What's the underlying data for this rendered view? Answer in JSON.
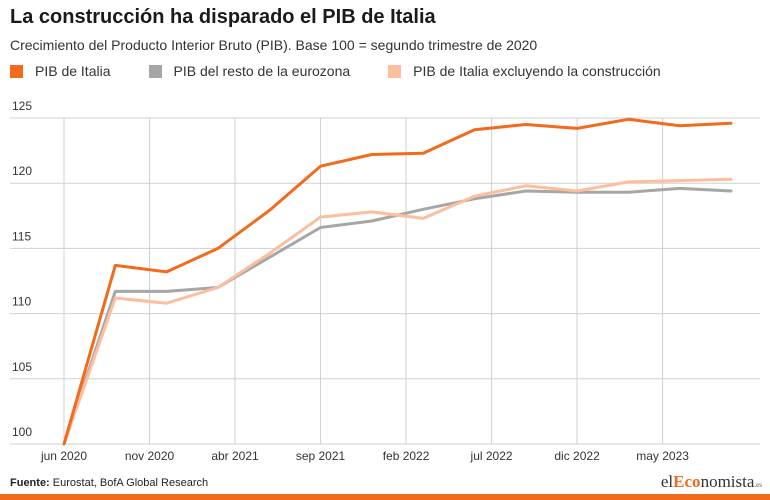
{
  "title": "La construcción ha disparado el PIB de Italia",
  "subtitle": "Crecimiento del Producto Interior Bruto (PIB). Base 100 = segundo trimestre de 2020",
  "source_label": "Fuente:",
  "source_text": " Eurostat, BofA Global Research",
  "logo": {
    "prefix": "el",
    "accent": "Eco",
    "rest": "nomista",
    "suffix": ".es"
  },
  "colors": {
    "italy": "#f26a1b",
    "eurozone": "#a6a6a6",
    "excl": "#fbbf9f",
    "brand": "#f26a1b"
  },
  "chart_data": {
    "type": "line",
    "x": [
      "2020-06",
      "2020-09",
      "2020-12",
      "2021-03",
      "2021-06",
      "2021-09",
      "2021-12",
      "2022-03",
      "2022-06",
      "2022-09",
      "2022-12",
      "2023-03",
      "2023-06",
      "2023-09"
    ],
    "xticks": [
      {
        "label": "jun 2020",
        "x": "2020-06"
      },
      {
        "label": "nov 2020",
        "x": "2020-11"
      },
      {
        "label": "abr 2021",
        "x": "2021-04"
      },
      {
        "label": "sep 2021",
        "x": "2021-09"
      },
      {
        "label": "feb 2022",
        "x": "2022-02"
      },
      {
        "label": "jul 2022",
        "x": "2022-07"
      },
      {
        "label": "dic 2022",
        "x": "2022-12"
      },
      {
        "label": "may 2023",
        "x": "2023-05"
      }
    ],
    "yticks": [
      100,
      105,
      110,
      115,
      120,
      125
    ],
    "ylim": [
      100,
      125
    ],
    "grid": true,
    "legend": "top-left",
    "series": [
      {
        "name": "PIB de Italia",
        "color": "#f26a1b",
        "values": [
          100,
          113.7,
          113.2,
          115.0,
          117.9,
          121.3,
          122.2,
          122.3,
          124.1,
          124.5,
          124.2,
          124.9,
          124.4,
          124.6
        ]
      },
      {
        "name": "PIB del resto de la eurozona",
        "color": "#a6a6a6",
        "values": [
          100,
          111.7,
          111.7,
          112.0,
          114.3,
          116.6,
          117.1,
          118.0,
          118.8,
          119.4,
          119.3,
          119.3,
          119.6,
          119.4
        ]
      },
      {
        "name": "PIB de Italia excluyendo la construcción",
        "color": "#fbbf9f",
        "values": [
          100,
          111.2,
          110.8,
          112.0,
          114.6,
          117.4,
          117.8,
          117.3,
          119.0,
          119.8,
          119.4,
          120.1,
          120.2,
          120.3
        ]
      }
    ]
  }
}
